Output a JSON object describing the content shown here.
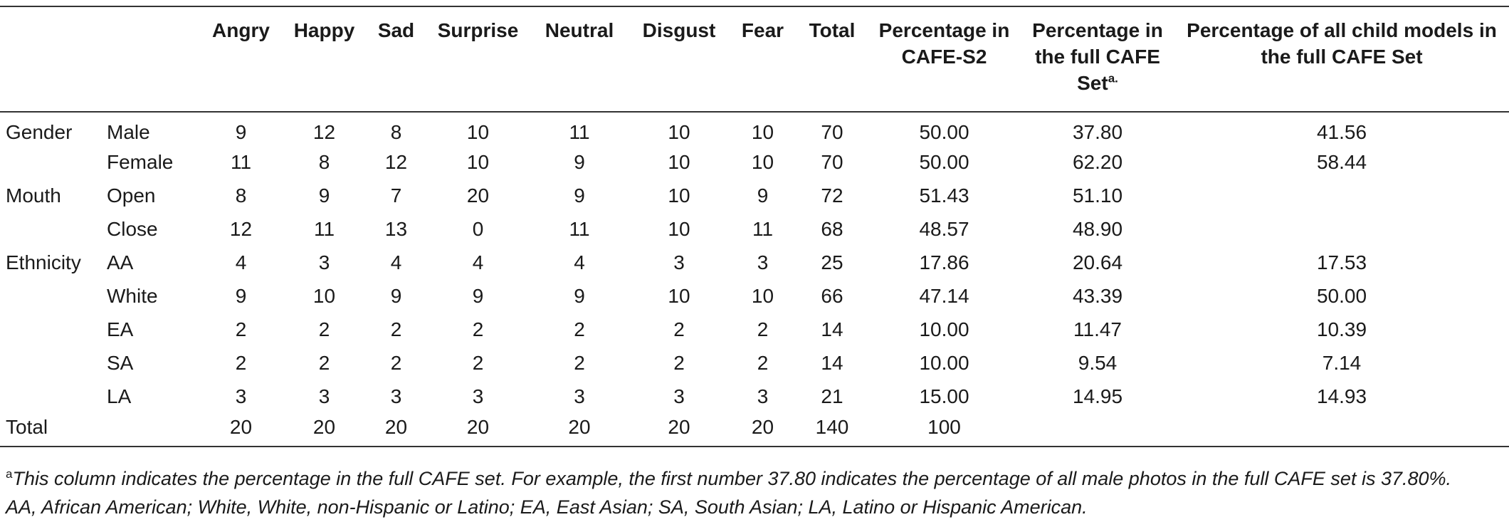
{
  "table": {
    "headers": [
      "",
      "",
      "Angry",
      "Happy",
      "Sad",
      "Surprise",
      "Neutral",
      "Disgust",
      "Fear",
      "Total",
      "Percentage in CAFE-S2",
      "Percentage in the full CAFE Set",
      "Percentage of all child models in the full CAFE Set"
    ],
    "header_sup": "a.",
    "rows": [
      [
        "Gender",
        "Male",
        "9",
        "12",
        "8",
        "10",
        "11",
        "10",
        "10",
        "70",
        "50.00",
        "37.80",
        "41.56"
      ],
      [
        "",
        "Female",
        "11",
        "8",
        "12",
        "10",
        "9",
        "10",
        "10",
        "70",
        "50.00",
        "62.20",
        "58.44"
      ],
      [
        "Mouth",
        "Open",
        "8",
        "9",
        "7",
        "20",
        "9",
        "10",
        "9",
        "72",
        "51.43",
        "51.10",
        ""
      ],
      [
        "",
        "Close",
        "12",
        "11",
        "13",
        "0",
        "11",
        "10",
        "11",
        "68",
        "48.57",
        "48.90",
        ""
      ],
      [
        "Ethnicity",
        "AA",
        "4",
        "3",
        "4",
        "4",
        "4",
        "3",
        "3",
        "25",
        "17.86",
        "20.64",
        "17.53"
      ],
      [
        "",
        "White",
        "9",
        "10",
        "9",
        "9",
        "9",
        "10",
        "10",
        "66",
        "47.14",
        "43.39",
        "50.00"
      ],
      [
        "",
        "EA",
        "2",
        "2",
        "2",
        "2",
        "2",
        "2",
        "2",
        "14",
        "10.00",
        "11.47",
        "10.39"
      ],
      [
        "",
        "SA",
        "2",
        "2",
        "2",
        "2",
        "2",
        "2",
        "2",
        "14",
        "10.00",
        "9.54",
        "7.14"
      ],
      [
        "",
        "LA",
        "3",
        "3",
        "3",
        "3",
        "3",
        "3",
        "3",
        "21",
        "15.00",
        "14.95",
        "14.93"
      ],
      [
        "Total",
        "",
        "20",
        "20",
        "20",
        "20",
        "20",
        "20",
        "20",
        "140",
        "100",
        "",
        ""
      ]
    ]
  },
  "footnote": {
    "marker": "a",
    "line1": "This column indicates the percentage in the full CAFE set. For example, the first number 37.80 indicates the percentage of all male photos in the full CAFE set is 37.80%.",
    "line2": "AA, African American; White, White, non-Hispanic or Latino; EA, East Asian; SA, South Asian; LA, Latino or Hispanic American."
  }
}
